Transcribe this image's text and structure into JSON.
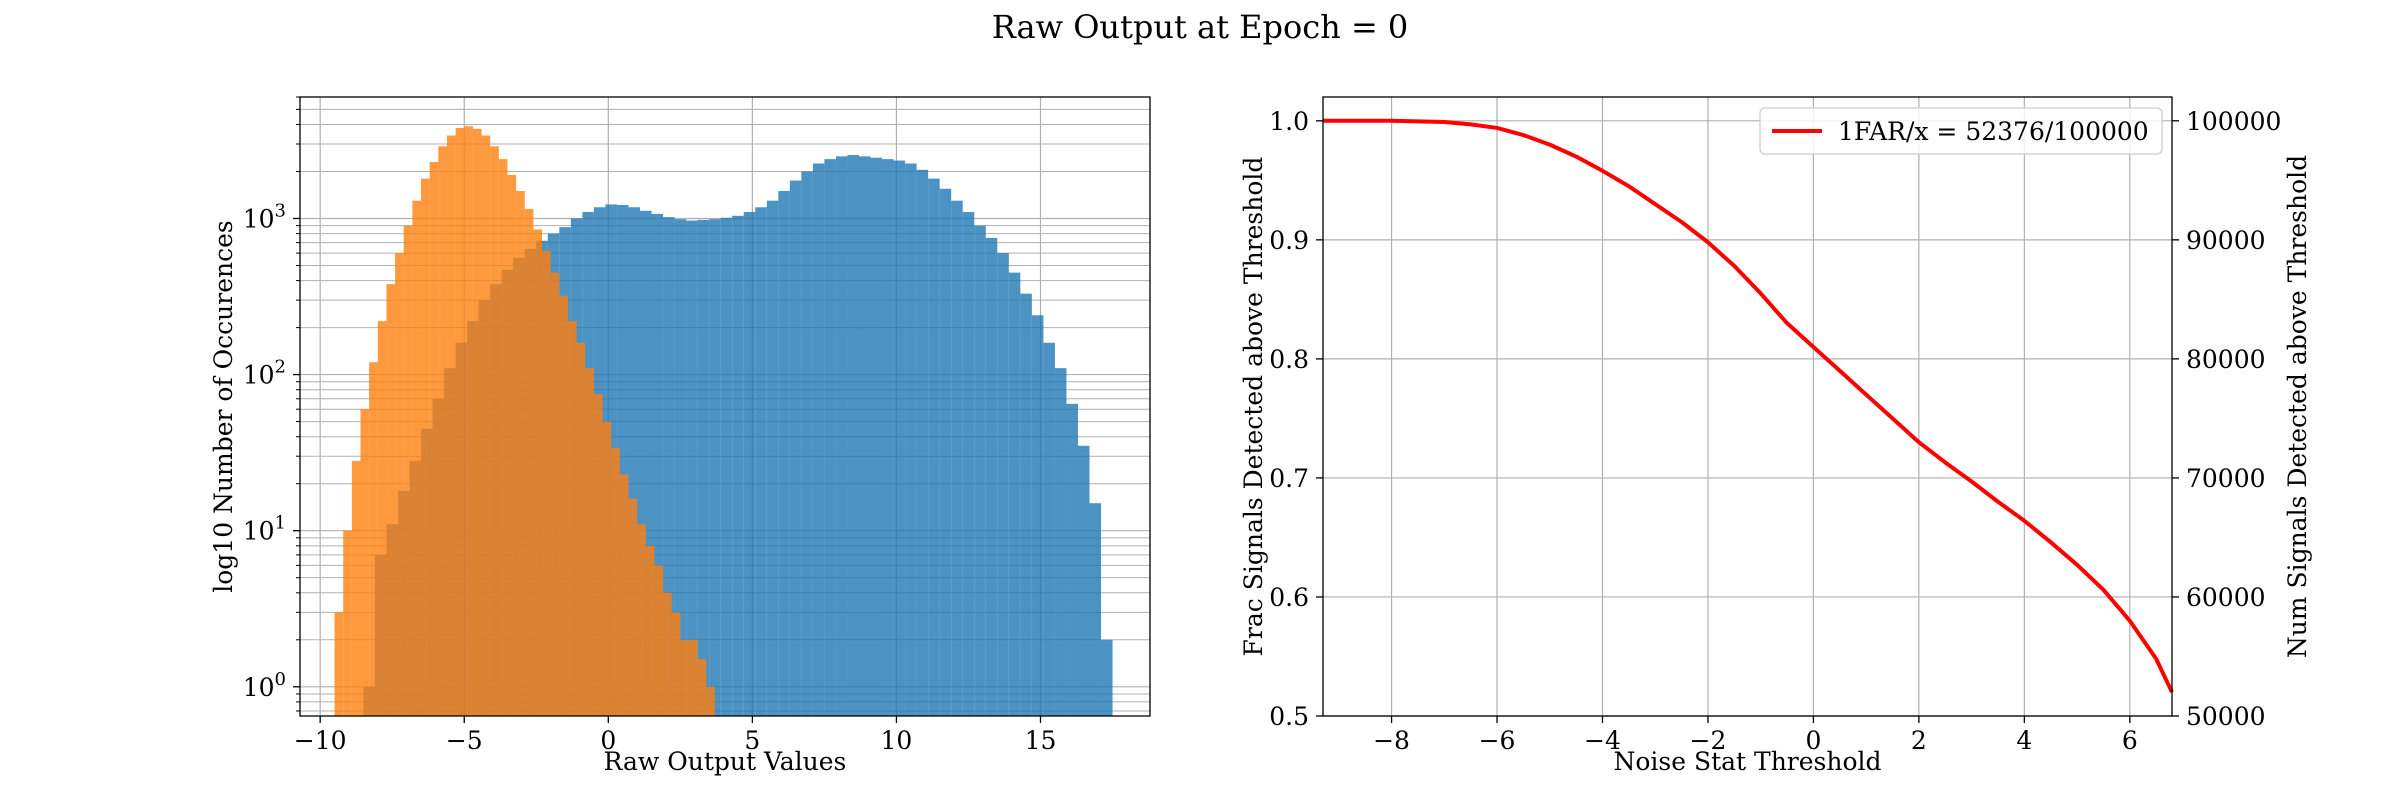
{
  "figure": {
    "title": "Raw Output at Epoch = 0"
  },
  "chart_data": [
    {
      "type": "histogram",
      "xlabel": "Raw Output Values",
      "ylabel": "log10 Number of Occurences",
      "xlim": [
        -10.7,
        18.8
      ],
      "ylim": [
        0.65,
        6000
      ],
      "yscale": "log",
      "grid": true,
      "xticks": [
        -10,
        -5,
        0,
        5,
        10,
        15
      ],
      "xtick_labels": [
        "−10",
        "−5",
        "0",
        "5",
        "10",
        "15"
      ],
      "ytick_labels": [
        {
          "value": 1,
          "base": "10",
          "exp": "0"
        },
        {
          "value": 10,
          "base": "10",
          "exp": "1"
        },
        {
          "value": 100,
          "base": "10",
          "exp": "2"
        },
        {
          "value": 1000,
          "base": "10",
          "exp": "3"
        }
      ],
      "series": [
        {
          "color": "#1f77b4",
          "alpha": 0.8,
          "bins": [
            [
              -8.3,
              1
            ],
            [
              -7.9,
              7
            ],
            [
              -7.5,
              11
            ],
            [
              -7.1,
              18
            ],
            [
              -6.7,
              28
            ],
            [
              -6.3,
              45
            ],
            [
              -5.9,
              70
            ],
            [
              -5.5,
              110
            ],
            [
              -5.1,
              160
            ],
            [
              -4.7,
              220
            ],
            [
              -4.3,
              300
            ],
            [
              -3.9,
              380
            ],
            [
              -3.5,
              470
            ],
            [
              -3.1,
              560
            ],
            [
              -2.7,
              640
            ],
            [
              -2.3,
              720
            ],
            [
              -1.9,
              800
            ],
            [
              -1.5,
              880
            ],
            [
              -1.1,
              1000
            ],
            [
              -0.7,
              1100
            ],
            [
              -0.3,
              1180
            ],
            [
              0.1,
              1230
            ],
            [
              0.5,
              1220
            ],
            [
              0.9,
              1180
            ],
            [
              1.3,
              1120
            ],
            [
              1.7,
              1070
            ],
            [
              2.1,
              1020
            ],
            [
              2.5,
              990
            ],
            [
              2.9,
              970
            ],
            [
              3.3,
              980
            ],
            [
              3.7,
              990
            ],
            [
              4.1,
              1010
            ],
            [
              4.5,
              1040
            ],
            [
              4.9,
              1100
            ],
            [
              5.3,
              1180
            ],
            [
              5.7,
              1300
            ],
            [
              6.1,
              1500
            ],
            [
              6.5,
              1750
            ],
            [
              6.9,
              2000
            ],
            [
              7.3,
              2250
            ],
            [
              7.7,
              2400
            ],
            [
              8.1,
              2500
            ],
            [
              8.5,
              2550
            ],
            [
              8.9,
              2500
            ],
            [
              9.3,
              2450
            ],
            [
              9.7,
              2400
            ],
            [
              10.1,
              2350
            ],
            [
              10.5,
              2250
            ],
            [
              10.9,
              2050
            ],
            [
              11.3,
              1800
            ],
            [
              11.7,
              1550
            ],
            [
              12.1,
              1300
            ],
            [
              12.5,
              1100
            ],
            [
              12.9,
              900
            ],
            [
              13.3,
              750
            ],
            [
              13.7,
              600
            ],
            [
              14.1,
              450
            ],
            [
              14.5,
              330
            ],
            [
              14.9,
              240
            ],
            [
              15.3,
              160
            ],
            [
              15.7,
              110
            ],
            [
              16.1,
              65
            ],
            [
              16.5,
              35
            ],
            [
              16.9,
              15
            ],
            [
              17.3,
              2
            ]
          ]
        },
        {
          "color": "#ff7f0e",
          "alpha": 0.8,
          "bins": [
            [
              -9.35,
              3
            ],
            [
              -9.05,
              10
            ],
            [
              -8.75,
              28
            ],
            [
              -8.45,
              60
            ],
            [
              -8.15,
              120
            ],
            [
              -7.85,
              220
            ],
            [
              -7.55,
              380
            ],
            [
              -7.25,
              600
            ],
            [
              -6.95,
              900
            ],
            [
              -6.65,
              1300
            ],
            [
              -6.35,
              1800
            ],
            [
              -6.05,
              2300
            ],
            [
              -5.75,
              2900
            ],
            [
              -5.45,
              3400
            ],
            [
              -5.15,
              3800
            ],
            [
              -4.85,
              3900
            ],
            [
              -4.55,
              3750
            ],
            [
              -4.25,
              3400
            ],
            [
              -3.95,
              2900
            ],
            [
              -3.65,
              2400
            ],
            [
              -3.35,
              1900
            ],
            [
              -3.05,
              1500
            ],
            [
              -2.75,
              1150
            ],
            [
              -2.45,
              850
            ],
            [
              -2.15,
              620
            ],
            [
              -1.85,
              450
            ],
            [
              -1.55,
              320
            ],
            [
              -1.25,
              220
            ],
            [
              -0.95,
              160
            ],
            [
              -0.65,
              110
            ],
            [
              -0.35,
              75
            ],
            [
              -0.05,
              50
            ],
            [
              0.25,
              34
            ],
            [
              0.55,
              23
            ],
            [
              0.85,
              16
            ],
            [
              1.15,
              11
            ],
            [
              1.45,
              8
            ],
            [
              1.75,
              6
            ],
            [
              2.05,
              4
            ],
            [
              2.35,
              3
            ],
            [
              2.65,
              2
            ],
            [
              2.95,
              2
            ],
            [
              3.25,
              1.5
            ],
            [
              3.55,
              1
            ]
          ]
        }
      ]
    },
    {
      "type": "line",
      "xlabel": "Noise Stat Threshold",
      "ylabel": "Frac Signals Detected above Threshold",
      "ylabel_right": "Num Signals Detected above Threshold",
      "xlim": [
        -9.3,
        6.8
      ],
      "ylim": [
        0.5,
        1.02
      ],
      "ylim_right": [
        50000,
        102000
      ],
      "grid": true,
      "legend_position": "top-right",
      "xticks": [
        -8,
        -6,
        -4,
        -2,
        0,
        2,
        4,
        6
      ],
      "xtick_labels": [
        "−8",
        "−6",
        "−4",
        "−2",
        "0",
        "2",
        "4",
        "6"
      ],
      "yticks": [
        0.5,
        0.6,
        0.7,
        0.8,
        0.9,
        1.0
      ],
      "ytick_labels": [
        "0.5",
        "0.6",
        "0.7",
        "0.8",
        "0.9",
        "1.0"
      ],
      "yticks_right": [
        50000,
        60000,
        70000,
        80000,
        90000,
        100000
      ],
      "ytick_labels_right": [
        "50000",
        "60000",
        "70000",
        "80000",
        "90000",
        "100000"
      ],
      "series": [
        {
          "name": "1FAR/x = 52376/100000",
          "color": "#ff0000",
          "x": [
            -9.3,
            -8,
            -7,
            -6.5,
            -6,
            -5.5,
            -5,
            -4.5,
            -4,
            -3.5,
            -3,
            -2.5,
            -2,
            -1.5,
            -1,
            -0.5,
            0,
            0.5,
            1,
            1.5,
            2,
            2.5,
            3,
            3.5,
            4,
            4.5,
            5,
            5.5,
            6,
            6.5,
            6.8
          ],
          "y": [
            1.0,
            1.0,
            0.999,
            0.997,
            0.994,
            0.988,
            0.98,
            0.97,
            0.958,
            0.945,
            0.93,
            0.915,
            0.898,
            0.878,
            0.855,
            0.83,
            0.81,
            0.79,
            0.77,
            0.75,
            0.73,
            0.713,
            0.697,
            0.68,
            0.664,
            0.646,
            0.627,
            0.606,
            0.58,
            0.548,
            0.52
          ]
        }
      ]
    }
  ]
}
